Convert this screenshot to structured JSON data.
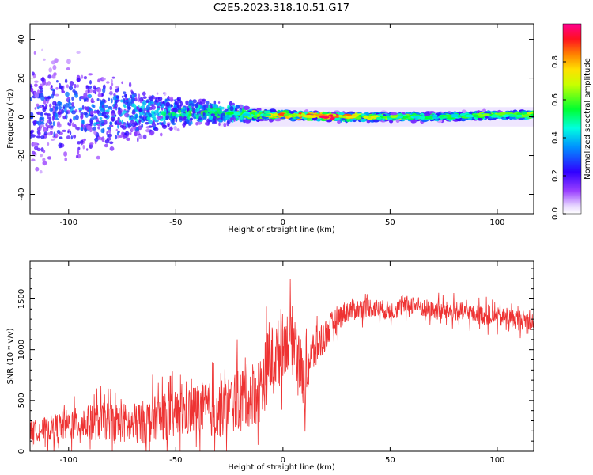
{
  "title": "C2E5.2023.318.10.51.G17",
  "chart_data": [
    {
      "type": "heatmap",
      "xlabel": "Height of straight line (km)",
      "ylabel": "Frequency (Hz)",
      "xlim": [
        -118,
        117
      ],
      "ylim": [
        -50,
        48
      ],
      "xticks": [
        -100,
        -50,
        0,
        50,
        100
      ],
      "yticks": [
        -40,
        -20,
        0,
        20,
        40
      ],
      "colorbar": {
        "label": "Normalized spectral amplitude",
        "range": [
          0.0,
          1.0
        ],
        "ticks": [
          0.0,
          0.2,
          0.4,
          0.6,
          0.8
        ],
        "colormap": [
          "#ffffff",
          "#8a2be2",
          "#0000ff",
          "#00ffff",
          "#00ff00",
          "#ffff00",
          "#ff8000",
          "#ff0000",
          "#ff00aa"
        ]
      },
      "frequency_band": {
        "x": [
          -118,
          -100,
          -75,
          -50,
          -25,
          -10,
          0,
          25,
          50,
          75,
          100,
          117
        ],
        "center_hz": [
          3,
          3,
          2,
          2,
          2,
          1,
          1,
          0,
          0,
          0,
          1,
          1
        ],
        "spread_hz": [
          45,
          40,
          25,
          12,
          8,
          4,
          3,
          3,
          3,
          3,
          3,
          3
        ],
        "peak_amplitude": [
          0.25,
          0.3,
          0.35,
          0.45,
          0.55,
          0.6,
          0.85,
          0.9,
          0.6,
          0.55,
          0.6,
          0.65
        ]
      },
      "grid": false
    },
    {
      "type": "line",
      "xlabel": "Height of straight line (km)",
      "ylabel": "SNR (10 * v/v)",
      "xlim": [
        -118,
        117
      ],
      "ylim": [
        0,
        1870
      ],
      "xticks": [
        -100,
        -50,
        0,
        50,
        100
      ],
      "yticks": [
        0,
        500,
        1000,
        1500
      ],
      "series": [
        {
          "color": "#ee3333",
          "x": [
            -118,
            -110,
            -100,
            -90,
            -80,
            -70,
            -60,
            -50,
            -40,
            -30,
            -20,
            -15,
            -10,
            -7,
            -3,
            0,
            5,
            8,
            10,
            13,
            20,
            25,
            30,
            40,
            50,
            60,
            70,
            80,
            90,
            100,
            110,
            117
          ],
          "y": [
            200,
            220,
            260,
            280,
            300,
            260,
            320,
            350,
            420,
            400,
            520,
            560,
            620,
            850,
            950,
            1050,
            1150,
            900,
            600,
            950,
            1150,
            1300,
            1380,
            1420,
            1380,
            1450,
            1380,
            1380,
            1350,
            1320,
            1300,
            1280
          ],
          "noise_amplitude": [
            120,
            150,
            200,
            220,
            240,
            260,
            280,
            300,
            320,
            350,
            380,
            400,
            420,
            450,
            420,
            400,
            360,
            340,
            320,
            300,
            200,
            160,
            140,
            120,
            120,
            120,
            120,
            120,
            120,
            120,
            120,
            120
          ]
        }
      ],
      "grid": false
    }
  ]
}
